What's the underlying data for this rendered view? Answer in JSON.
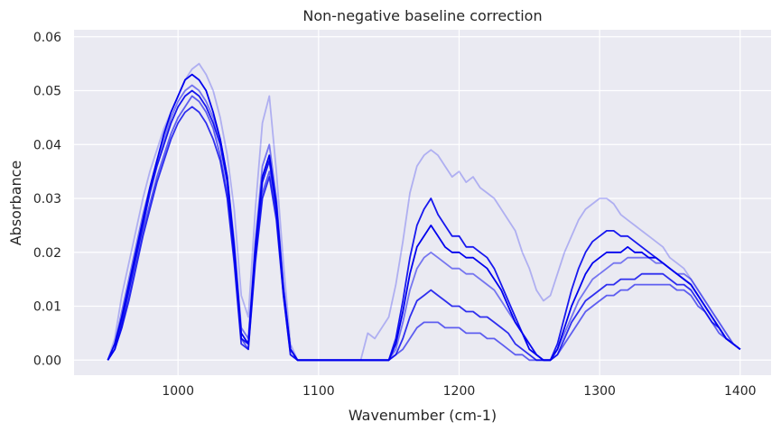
{
  "chart_data": {
    "type": "line",
    "title": "Non-negative baseline correction",
    "xlabel": "Wavenumber (cm-1)",
    "ylabel": "Absorbance",
    "xlim": [
      926,
      1422
    ],
    "ylim": [
      -0.0028,
      0.0613
    ],
    "xticks": [
      1000,
      1100,
      1200,
      1300,
      1400
    ],
    "xtick_labels": [
      "1000",
      "1100",
      "1200",
      "1300",
      "1400"
    ],
    "yticks": [
      0.0,
      0.01,
      0.02,
      0.03,
      0.04,
      0.05,
      0.06
    ],
    "ytick_labels": [
      "0.00",
      "0.01",
      "0.02",
      "0.03",
      "0.04",
      "0.05",
      "0.06"
    ],
    "grid": true,
    "background": "#eaeaf2",
    "grid_color": "#ffffff",
    "line_color": "#0000ee",
    "x": [
      950,
      955,
      960,
      965,
      970,
      975,
      980,
      985,
      990,
      995,
      1000,
      1005,
      1010,
      1015,
      1020,
      1025,
      1030,
      1035,
      1040,
      1045,
      1050,
      1055,
      1060,
      1065,
      1070,
      1075,
      1080,
      1085,
      1090,
      1095,
      1100,
      1105,
      1110,
      1115,
      1120,
      1125,
      1130,
      1135,
      1140,
      1145,
      1150,
      1155,
      1160,
      1165,
      1170,
      1175,
      1180,
      1185,
      1190,
      1195,
      1200,
      1205,
      1210,
      1215,
      1220,
      1225,
      1230,
      1235,
      1240,
      1245,
      1250,
      1255,
      1260,
      1265,
      1270,
      1275,
      1280,
      1285,
      1290,
      1295,
      1300,
      1305,
      1310,
      1315,
      1320,
      1325,
      1330,
      1335,
      1340,
      1345,
      1350,
      1355,
      1360,
      1365,
      1370,
      1375,
      1380,
      1385,
      1390,
      1395,
      1400
    ],
    "series": [
      {
        "alpha": 0.25,
        "values": [
          0.0,
          0.004,
          0.012,
          0.018,
          0.024,
          0.03,
          0.035,
          0.039,
          0.043,
          0.046,
          0.049,
          0.052,
          0.054,
          0.055,
          0.053,
          0.05,
          0.045,
          0.038,
          0.028,
          0.012,
          0.008,
          0.028,
          0.044,
          0.049,
          0.035,
          0.018,
          0.003,
          0.0,
          0.0,
          0.0,
          0.0,
          0.0,
          0.0,
          0.0,
          0.0,
          0.0,
          0.0,
          0.005,
          0.004,
          0.006,
          0.008,
          0.014,
          0.022,
          0.031,
          0.036,
          0.038,
          0.039,
          0.038,
          0.036,
          0.034,
          0.035,
          0.033,
          0.034,
          0.032,
          0.031,
          0.03,
          0.028,
          0.026,
          0.024,
          0.02,
          0.017,
          0.013,
          0.011,
          0.012,
          0.016,
          0.02,
          0.023,
          0.026,
          0.028,
          0.029,
          0.03,
          0.03,
          0.029,
          0.027,
          0.026,
          0.025,
          0.024,
          0.023,
          0.022,
          0.021,
          0.019,
          0.018,
          0.017,
          0.015,
          0.013,
          0.011,
          0.009,
          0.007,
          0.005,
          0.003,
          0.002
        ]
      },
      {
        "alpha": 0.5,
        "values": [
          0.0,
          0.003,
          0.009,
          0.015,
          0.021,
          0.027,
          0.032,
          0.037,
          0.041,
          0.045,
          0.048,
          0.05,
          0.051,
          0.05,
          0.048,
          0.045,
          0.041,
          0.034,
          0.022,
          0.006,
          0.004,
          0.022,
          0.036,
          0.04,
          0.03,
          0.014,
          0.002,
          0.0,
          0.0,
          0.0,
          0.0,
          0.0,
          0.0,
          0.0,
          0.0,
          0.0,
          0.0,
          0.0,
          0.0,
          0.0,
          0.0,
          0.002,
          0.007,
          0.013,
          0.017,
          0.019,
          0.02,
          0.019,
          0.018,
          0.017,
          0.017,
          0.016,
          0.016,
          0.015,
          0.014,
          0.013,
          0.011,
          0.009,
          0.007,
          0.005,
          0.003,
          0.001,
          0.0,
          0.0,
          0.002,
          0.005,
          0.008,
          0.011,
          0.013,
          0.015,
          0.016,
          0.017,
          0.018,
          0.018,
          0.019,
          0.019,
          0.019,
          0.019,
          0.018,
          0.018,
          0.017,
          0.016,
          0.016,
          0.015,
          0.013,
          0.011,
          0.009,
          0.007,
          0.005,
          0.003,
          0.002
        ]
      },
      {
        "alpha": 0.9,
        "values": [
          0.0,
          0.002,
          0.007,
          0.013,
          0.019,
          0.025,
          0.031,
          0.036,
          0.04,
          0.044,
          0.047,
          0.049,
          0.05,
          0.049,
          0.047,
          0.044,
          0.04,
          0.033,
          0.02,
          0.004,
          0.003,
          0.02,
          0.033,
          0.037,
          0.028,
          0.013,
          0.002,
          0.0,
          0.0,
          0.0,
          0.0,
          0.0,
          0.0,
          0.0,
          0.0,
          0.0,
          0.0,
          0.0,
          0.0,
          0.0,
          0.0,
          0.004,
          0.011,
          0.019,
          0.025,
          0.028,
          0.03,
          0.027,
          0.025,
          0.023,
          0.023,
          0.021,
          0.021,
          0.02,
          0.019,
          0.017,
          0.014,
          0.011,
          0.008,
          0.005,
          0.003,
          0.001,
          0.0,
          0.0,
          0.003,
          0.008,
          0.013,
          0.017,
          0.02,
          0.022,
          0.023,
          0.024,
          0.024,
          0.023,
          0.023,
          0.022,
          0.021,
          0.02,
          0.019,
          0.018,
          0.017,
          0.016,
          0.015,
          0.014,
          0.012,
          0.01,
          0.008,
          0.006,
          0.004,
          0.003,
          0.002
        ]
      },
      {
        "alpha": 0.8,
        "values": [
          0.0,
          0.002,
          0.006,
          0.011,
          0.017,
          0.023,
          0.028,
          0.033,
          0.037,
          0.041,
          0.044,
          0.046,
          0.047,
          0.046,
          0.044,
          0.041,
          0.037,
          0.03,
          0.018,
          0.003,
          0.002,
          0.018,
          0.03,
          0.034,
          0.026,
          0.012,
          0.001,
          0.0,
          0.0,
          0.0,
          0.0,
          0.0,
          0.0,
          0.0,
          0.0,
          0.0,
          0.0,
          0.0,
          0.0,
          0.0,
          0.0,
          0.001,
          0.004,
          0.008,
          0.011,
          0.012,
          0.013,
          0.012,
          0.011,
          0.01,
          0.01,
          0.009,
          0.009,
          0.008,
          0.008,
          0.007,
          0.006,
          0.005,
          0.003,
          0.002,
          0.001,
          0.0,
          0.0,
          0.0,
          0.001,
          0.004,
          0.007,
          0.009,
          0.011,
          0.012,
          0.013,
          0.014,
          0.014,
          0.015,
          0.015,
          0.015,
          0.016,
          0.016,
          0.016,
          0.016,
          0.015,
          0.014,
          0.014,
          0.013,
          0.011,
          0.009,
          0.007,
          0.006,
          0.004,
          0.003,
          0.002
        ]
      },
      {
        "alpha": 1.0,
        "values": [
          0.0,
          0.003,
          0.008,
          0.014,
          0.02,
          0.026,
          0.032,
          0.037,
          0.042,
          0.046,
          0.049,
          0.052,
          0.053,
          0.052,
          0.05,
          0.046,
          0.041,
          0.034,
          0.021,
          0.005,
          0.003,
          0.021,
          0.034,
          0.038,
          0.029,
          0.013,
          0.002,
          0.0,
          0.0,
          0.0,
          0.0,
          0.0,
          0.0,
          0.0,
          0.0,
          0.0,
          0.0,
          0.0,
          0.0,
          0.0,
          0.0,
          0.003,
          0.009,
          0.016,
          0.021,
          0.023,
          0.025,
          0.023,
          0.021,
          0.02,
          0.02,
          0.019,
          0.019,
          0.018,
          0.017,
          0.015,
          0.013,
          0.01,
          0.007,
          0.005,
          0.002,
          0.001,
          0.0,
          0.0,
          0.002,
          0.006,
          0.01,
          0.013,
          0.016,
          0.018,
          0.019,
          0.02,
          0.02,
          0.02,
          0.021,
          0.02,
          0.02,
          0.019,
          0.019,
          0.018,
          0.017,
          0.016,
          0.015,
          0.014,
          0.012,
          0.01,
          0.008,
          0.006,
          0.004,
          0.003,
          0.002
        ]
      },
      {
        "alpha": 0.6,
        "values": [
          0.0,
          0.002,
          0.006,
          0.012,
          0.018,
          0.024,
          0.029,
          0.034,
          0.038,
          0.042,
          0.045,
          0.047,
          0.049,
          0.048,
          0.046,
          0.043,
          0.038,
          0.031,
          0.019,
          0.004,
          0.002,
          0.019,
          0.031,
          0.035,
          0.027,
          0.012,
          0.001,
          0.0,
          0.0,
          0.0,
          0.0,
          0.0,
          0.0,
          0.0,
          0.0,
          0.0,
          0.0,
          0.0,
          0.0,
          0.0,
          0.0,
          0.001,
          0.002,
          0.004,
          0.006,
          0.007,
          0.007,
          0.007,
          0.006,
          0.006,
          0.006,
          0.005,
          0.005,
          0.005,
          0.004,
          0.004,
          0.003,
          0.002,
          0.001,
          0.001,
          0.0,
          0.0,
          0.0,
          0.0,
          0.001,
          0.003,
          0.005,
          0.007,
          0.009,
          0.01,
          0.011,
          0.012,
          0.012,
          0.013,
          0.013,
          0.014,
          0.014,
          0.014,
          0.014,
          0.014,
          0.014,
          0.013,
          0.013,
          0.012,
          0.01,
          0.009,
          0.007,
          0.005,
          0.004,
          0.003,
          0.002
        ]
      }
    ]
  }
}
